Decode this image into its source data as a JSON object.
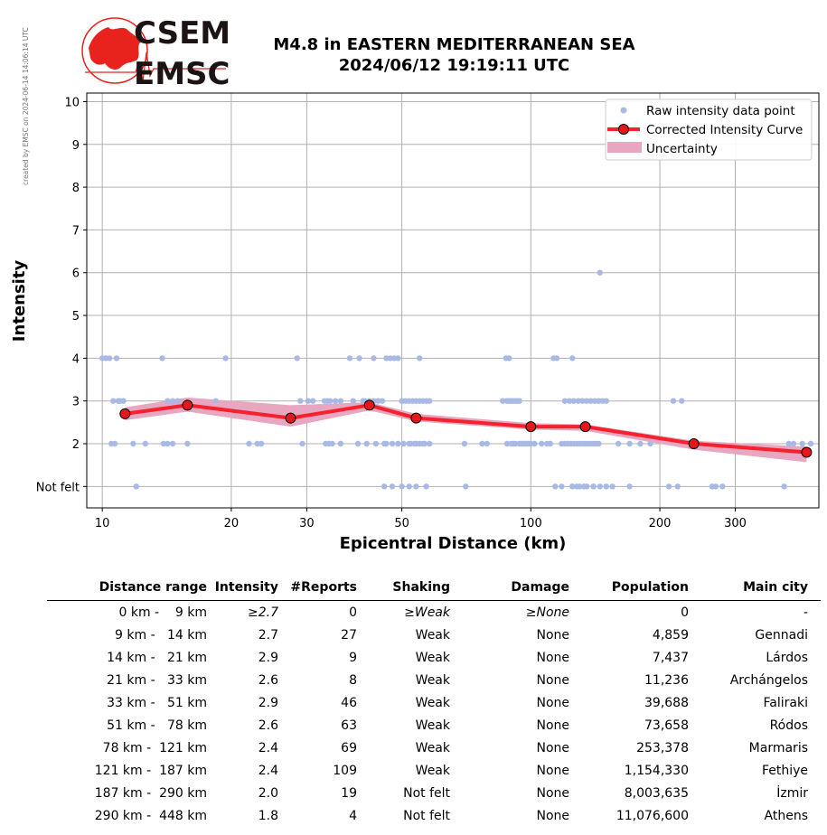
{
  "side_note": "created by EMSC on 2024-06-14 14:06:14 UTC",
  "logo": {
    "line1": "CSEM",
    "line2": "EMSC",
    "colors": {
      "red": "#e8231e",
      "dark": "#1c1414"
    }
  },
  "title": {
    "line1": "M4.8 in EASTERN MEDITERRANEAN SEA",
    "line2": "2024/06/12 19:19:11 UTC"
  },
  "chart_data": {
    "type": "scatter",
    "xlabel": "Epicentral Distance (km)",
    "ylabel": "Intensity",
    "xscale": "log",
    "xlim": [
      9.2,
      470
    ],
    "ylim": [
      0.5,
      10.2
    ],
    "x_ticks": [
      10,
      20,
      30,
      50,
      100,
      200,
      300
    ],
    "x_tick_labels": [
      "10",
      "20",
      "30",
      "50",
      "100",
      "200",
      "300"
    ],
    "y_ticks": [
      1,
      2,
      3,
      4,
      5,
      6,
      7,
      8,
      9,
      10
    ],
    "y_tick_labels": [
      "Not felt",
      "2",
      "3",
      "4",
      "5",
      "6",
      "7",
      "8",
      "9",
      "10"
    ],
    "grid": true,
    "legend_position": "top-right",
    "legend": [
      "Raw intensity data point",
      "Corrected Intensity Curve",
      "Uncertainty"
    ],
    "colors": {
      "raw": "#a9b9e6",
      "curve": "#f5222d",
      "marker": "#e6171b",
      "band": "#e8a6c0"
    },
    "series": [
      {
        "name": "Corrected Intensity Curve",
        "x": [
          11.3,
          15.8,
          27.5,
          42,
          54,
          100,
          134,
          240,
          440
        ],
        "y": [
          2.7,
          2.9,
          2.6,
          2.9,
          2.6,
          2.4,
          2.4,
          2.0,
          1.8
        ]
      }
    ],
    "uncertainty": {
      "x": [
        11.3,
        15.8,
        27.5,
        42,
        54,
        100,
        134,
        240,
        440
      ],
      "lower": [
        2.55,
        2.75,
        2.4,
        2.78,
        2.52,
        2.33,
        2.3,
        1.86,
        1.57
      ],
      "upper": [
        2.85,
        3.08,
        2.9,
        2.97,
        2.7,
        2.48,
        2.45,
        2.07,
        1.93
      ]
    },
    "raw_points": {
      "x": [
        10,
        10.2,
        10.4,
        10.8,
        11,
        10.6,
        10.9,
        11.2,
        10.5,
        10.7,
        11.8,
        12.6,
        12,
        13.8,
        14.2,
        14.6,
        15,
        13.9,
        14.2,
        14.6,
        15.8,
        18.4,
        19.4,
        22,
        23,
        23.5,
        28.5,
        29,
        29.3,
        30.2,
        31,
        33,
        33.5,
        34,
        35,
        36,
        33.2,
        33.8,
        34.4,
        36,
        37.8,
        38.5,
        39.8,
        39.5,
        40.6,
        41,
        42,
        43,
        44,
        45,
        41.4,
        43.5,
        45.5,
        43,
        46,
        47,
        48,
        49,
        50,
        51,
        52,
        53,
        54,
        55,
        56,
        57,
        58,
        46,
        47.5,
        49,
        50.5,
        52,
        53.5,
        55,
        56.5,
        58,
        55,
        54,
        57,
        45.5,
        47.5,
        50,
        52,
        52.5,
        54,
        56,
        58,
        70.5,
        70,
        77,
        79,
        86,
        88,
        89,
        90,
        91,
        92,
        93,
        94,
        87.5,
        89,
        88,
        90,
        91,
        92,
        94,
        95,
        96,
        97,
        98,
        99,
        100,
        102,
        106,
        109,
        111,
        118,
        120,
        122,
        124,
        126,
        128,
        130,
        132,
        134,
        136,
        138,
        140,
        142,
        144,
        120,
        123,
        126,
        129,
        132,
        135,
        138,
        141,
        144,
        147,
        150,
        113,
        115,
        125,
        145,
        114,
        125,
        130,
        135,
        150,
        118,
        125,
        128,
        133,
        135,
        140,
        140,
        145,
        155,
        160,
        170,
        180,
        190,
        215,
        225,
        210,
        220,
        265,
        270,
        280,
        400,
        430,
        450,
        390,
        410,
        170
      ],
      "y": [
        4,
        4,
        4,
        4,
        3,
        3,
        3,
        3,
        2,
        2,
        2,
        2,
        1,
        4,
        3,
        3,
        3,
        2,
        2,
        2,
        2,
        3,
        4,
        2,
        2,
        2,
        4,
        3,
        2,
        3,
        3,
        3,
        3,
        3,
        3,
        3,
        2,
        2,
        2,
        2,
        4,
        3,
        4,
        2,
        3,
        3,
        3,
        3,
        3,
        3,
        2,
        2,
        2,
        4,
        4,
        4,
        4,
        4,
        3,
        3,
        3,
        3,
        3,
        3,
        3,
        3,
        3,
        2,
        2,
        2,
        2,
        2,
        2,
        2,
        2,
        2,
        4,
        1,
        1,
        1,
        1,
        1,
        1,
        2,
        2,
        2,
        2,
        1,
        2,
        2,
        2,
        3,
        3,
        3,
        3,
        3,
        3,
        3,
        3,
        4,
        4,
        2,
        2,
        2,
        2,
        2,
        2,
        2,
        2,
        2,
        2,
        2,
        2,
        2,
        2,
        2,
        2,
        2,
        2,
        2,
        2,
        2,
        2,
        2,
        2,
        2,
        2,
        2,
        2,
        2,
        3,
        3,
        3,
        3,
        3,
        3,
        3,
        3,
        3,
        3,
        3,
        4,
        4,
        4,
        6,
        1,
        1,
        1,
        1,
        1,
        1,
        1,
        1,
        1,
        1,
        1,
        1,
        1,
        1,
        2,
        2,
        2,
        2,
        3,
        3,
        1,
        1,
        1,
        1,
        1,
        2,
        2,
        2,
        1,
        2,
        1
      ]
    }
  },
  "table": {
    "headers": [
      "Distance range",
      "Intensity",
      "#Reports",
      "Shaking",
      "Damage",
      "Population",
      "Main city"
    ],
    "rows": [
      [
        "0 km -    9 km",
        "≥2.7",
        "0",
        "≥Weak",
        "≥None",
        "0",
        "-"
      ],
      [
        "9 km -   14 km",
        "2.7",
        "27",
        "Weak",
        "None",
        "4,859",
        "Gennadi"
      ],
      [
        "14 km -   21 km",
        "2.9",
        "9",
        "Weak",
        "None",
        "7,437",
        "Lárdos"
      ],
      [
        "21 km -   33 km",
        "2.6",
        "8",
        "Weak",
        "None",
        "11,236",
        "Archángelos"
      ],
      [
        "33 km -   51 km",
        "2.9",
        "46",
        "Weak",
        "None",
        "39,688",
        "Faliraki"
      ],
      [
        "51 km -   78 km",
        "2.6",
        "63",
        "Weak",
        "None",
        "73,658",
        "Ródos"
      ],
      [
        "78 km -  121 km",
        "2.4",
        "69",
        "Weak",
        "None",
        "253,378",
        "Marmaris"
      ],
      [
        "121 km -  187 km",
        "2.4",
        "109",
        "Weak",
        "None",
        "1,154,330",
        "Fethiye"
      ],
      [
        "187 km -  290 km",
        "2.0",
        "19",
        "Not felt",
        "None",
        "8,003,635",
        "İzmir"
      ],
      [
        "290 km -  448 km",
        "1.8",
        "4",
        "Not felt",
        "None",
        "11,076,600",
        "Athens"
      ]
    ]
  }
}
